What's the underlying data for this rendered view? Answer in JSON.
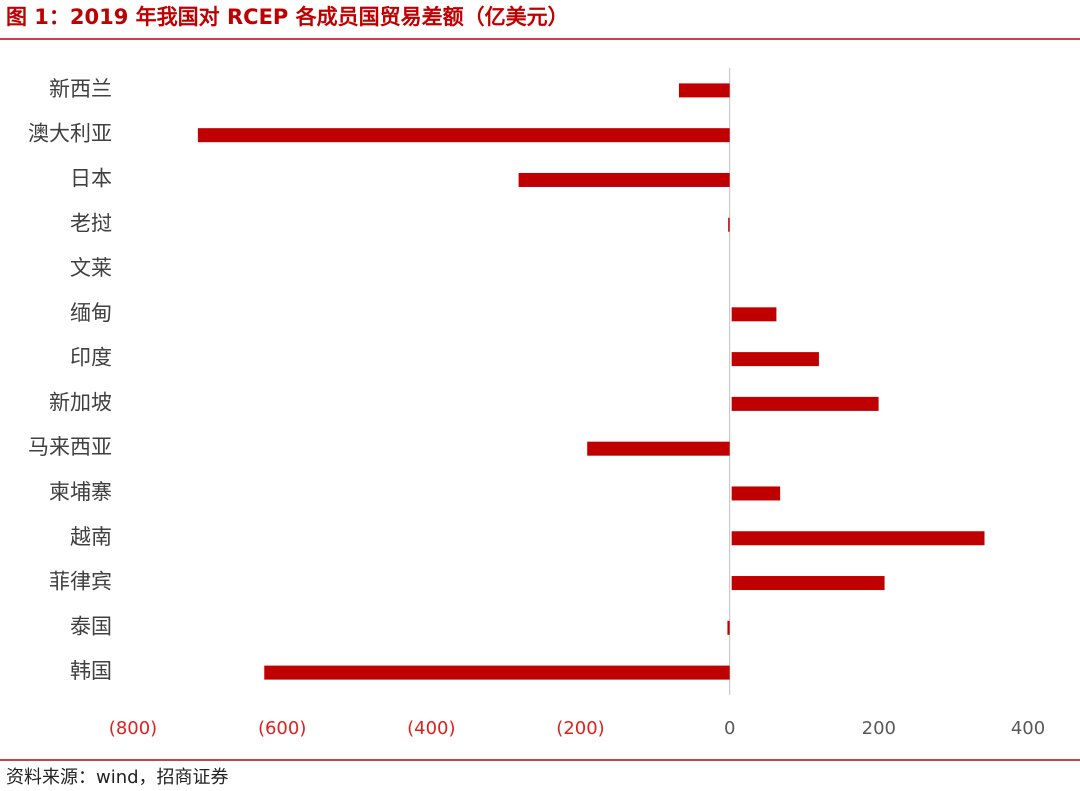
{
  "chart_data": {
    "type": "hbar",
    "title": "图 1：2019 年我国对 RCEP 各成员国贸易差额（亿美元）",
    "source": "资料来源：wind，招商证券",
    "categories": [
      "新西兰",
      "澳大利亚",
      "日本",
      "老挝",
      "文莱",
      "缅甸",
      "印度",
      "新加坡",
      "马来西亚",
      "柬埔寨",
      "越南",
      "菲律宾",
      "泰国",
      "韩国"
    ],
    "values": [
      -68,
      -713,
      -283,
      -2,
      0,
      60,
      117,
      197,
      -191,
      65,
      339,
      205,
      -3,
      -624
    ],
    "color": "#c00000",
    "xlim": [
      -800,
      400
    ],
    "xticks": [
      {
        "value": -800,
        "label": "(800)"
      },
      {
        "value": -600,
        "label": "(600)"
      },
      {
        "value": -400,
        "label": "(400)"
      },
      {
        "value": -200,
        "label": "(200)"
      },
      0,
      200,
      400
    ],
    "negative_tick_color": "#e02020",
    "tick_color": "#595959"
  }
}
